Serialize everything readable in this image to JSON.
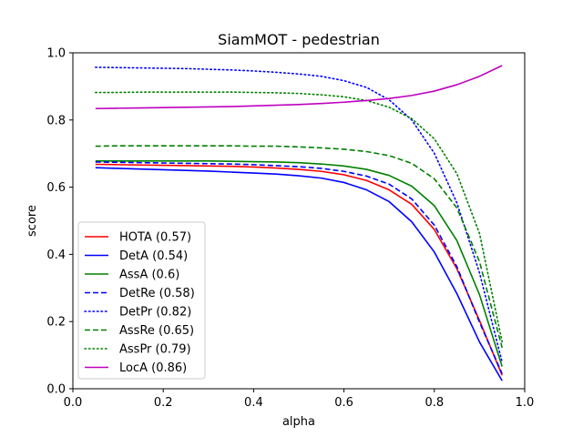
{
  "chart_data": {
    "type": "line",
    "title": "SiamMOT - pedestrian",
    "xlabel": "alpha",
    "ylabel": "score",
    "xlim": [
      0.0,
      1.0
    ],
    "ylim": [
      0.0,
      1.0
    ],
    "xticks": [
      "0.0",
      "0.2",
      "0.4",
      "0.6",
      "0.8",
      "1.0"
    ],
    "yticks": [
      "0.0",
      "0.2",
      "0.4",
      "0.6",
      "0.8",
      "1.0"
    ],
    "grid": false,
    "legend_position": "lower-left",
    "x": [
      0.05,
      0.1,
      0.15,
      0.2,
      0.25,
      0.3,
      0.35,
      0.4,
      0.45,
      0.5,
      0.55,
      0.6,
      0.65,
      0.7,
      0.75,
      0.8,
      0.85,
      0.9,
      0.95
    ],
    "series": [
      {
        "name": "HOTA (0.57)",
        "color": "#ff0000",
        "dash": "solid",
        "values": [
          0.668,
          0.667,
          0.666,
          0.665,
          0.664,
          0.663,
          0.662,
          0.66,
          0.657,
          0.653,
          0.647,
          0.637,
          0.62,
          0.592,
          0.549,
          0.474,
          0.357,
          0.203,
          0.04
        ]
      },
      {
        "name": "DetA (0.54)",
        "color": "#0000ff",
        "dash": "solid",
        "values": [
          0.658,
          0.656,
          0.654,
          0.652,
          0.65,
          0.648,
          0.645,
          0.642,
          0.639,
          0.634,
          0.627,
          0.614,
          0.592,
          0.557,
          0.497,
          0.407,
          0.283,
          0.139,
          0.024
        ]
      },
      {
        "name": "AssA (0.6)",
        "color": "#008000",
        "dash": "solid",
        "values": [
          0.678,
          0.678,
          0.678,
          0.678,
          0.678,
          0.678,
          0.677,
          0.676,
          0.675,
          0.673,
          0.669,
          0.663,
          0.653,
          0.635,
          0.603,
          0.545,
          0.441,
          0.28,
          0.066
        ]
      },
      {
        "name": "DetRe (0.58)",
        "color": "#0000ff",
        "dash": "dashed",
        "values": [
          0.675,
          0.674,
          0.673,
          0.672,
          0.671,
          0.67,
          0.669,
          0.667,
          0.664,
          0.661,
          0.656,
          0.647,
          0.633,
          0.609,
          0.565,
          0.487,
          0.363,
          0.198,
          0.045
        ]
      },
      {
        "name": "DetPr (0.82)",
        "color": "#0000ff",
        "dash": "dotted",
        "values": [
          0.957,
          0.956,
          0.955,
          0.954,
          0.953,
          0.951,
          0.949,
          0.946,
          0.942,
          0.937,
          0.93,
          0.917,
          0.897,
          0.86,
          0.8,
          0.701,
          0.553,
          0.345,
          0.08
        ]
      },
      {
        "name": "AssRe (0.65)",
        "color": "#008000",
        "dash": "dashed",
        "values": [
          0.722,
          0.723,
          0.723,
          0.723,
          0.723,
          0.723,
          0.723,
          0.722,
          0.722,
          0.72,
          0.717,
          0.713,
          0.706,
          0.694,
          0.671,
          0.625,
          0.538,
          0.378,
          0.122
        ]
      },
      {
        "name": "AssPr (0.79)",
        "color": "#008000",
        "dash": "dotted",
        "values": [
          0.882,
          0.882,
          0.883,
          0.883,
          0.883,
          0.883,
          0.883,
          0.882,
          0.881,
          0.879,
          0.875,
          0.869,
          0.858,
          0.838,
          0.804,
          0.744,
          0.64,
          0.462,
          0.14
        ]
      },
      {
        "name": "LocA (0.86)",
        "color": "#bf00bf",
        "dash": "solid",
        "values": [
          0.834,
          0.835,
          0.836,
          0.837,
          0.838,
          0.839,
          0.84,
          0.842,
          0.844,
          0.846,
          0.849,
          0.853,
          0.858,
          0.864,
          0.873,
          0.886,
          0.905,
          0.93,
          0.962
        ]
      }
    ]
  }
}
